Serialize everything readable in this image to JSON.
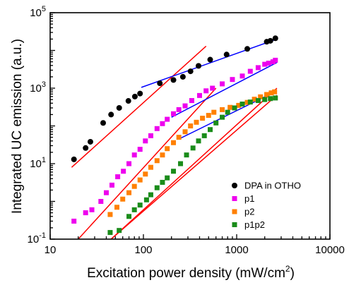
{
  "chart_data": {
    "type": "scatter",
    "xlabel": "Excitation power density (mW/cm",
    "xlabel_sup": "2",
    "xlabel_end": ")",
    "ylabel": "Integrated UC emission (a.u.)",
    "xscale": "log",
    "yscale": "log",
    "xlim": [
      10,
      10000
    ],
    "ylim": [
      0.1,
      100000
    ],
    "x_ticks": [
      10,
      100,
      1000,
      10000
    ],
    "x_tick_labels": [
      "10",
      "100",
      "1000",
      "10000"
    ],
    "y_ticks": [
      0.1,
      10,
      1000,
      100000
    ],
    "y_tick_labels": [
      {
        "base": "10",
        "exp": "-1"
      },
      {
        "base": "10",
        "exp": "1"
      },
      {
        "base": "10",
        "exp": "3"
      },
      {
        "base": "10",
        "exp": "5"
      }
    ],
    "grid": false,
    "legend_position": "bottom-right",
    "series": [
      {
        "name": "DPA in OTHO",
        "color": "#000000",
        "marker": "circle",
        "x": [
          18,
          24,
          27,
          37,
          45,
          55,
          69,
          81,
          92,
          150,
          210,
          265,
          320,
          390,
          520,
          780,
          1300,
          2100,
          2300,
          2600
        ],
        "y": [
          13,
          26,
          38,
          120,
          200,
          300,
          460,
          600,
          720,
          1350,
          1650,
          2000,
          2800,
          3900,
          5700,
          7800,
          11000,
          17000,
          18000,
          21000
        ]
      },
      {
        "name": "p1",
        "color": "#ee00ee",
        "marker": "square",
        "x": [
          18,
          24,
          28,
          35,
          40,
          46,
          53,
          61,
          70,
          80,
          92,
          105,
          120,
          140,
          160,
          180,
          210,
          240,
          280,
          330,
          400,
          470,
          550,
          700,
          900,
          1150,
          1400,
          1700,
          2000,
          2200,
          2450,
          2600
        ],
        "y": [
          0.3,
          0.5,
          0.6,
          1.0,
          1.7,
          2.7,
          4.5,
          6.3,
          10,
          17,
          24,
          40,
          55,
          85,
          115,
          150,
          210,
          270,
          340,
          470,
          640,
          850,
          1000,
          1300,
          1700,
          2100,
          2800,
          3500,
          4300,
          4600,
          5000,
          5500
        ]
      },
      {
        "name": "p2",
        "color": "#ff8000",
        "marker": "square",
        "x": [
          44,
          52,
          60,
          70,
          80,
          92,
          105,
          120,
          140,
          160,
          180,
          210,
          240,
          280,
          320,
          370,
          430,
          500,
          570,
          700,
          850,
          1050,
          1300,
          1550,
          1800,
          2100,
          2350,
          2550
        ],
        "y": [
          0.45,
          0.7,
          1.15,
          1.7,
          2.5,
          3.7,
          5.3,
          8,
          12,
          17,
          25,
          36,
          50,
          70,
          100,
          125,
          160,
          190,
          230,
          270,
          310,
          350,
          420,
          510,
          590,
          680,
          750,
          800
        ]
      },
      {
        "name": "p1p2",
        "color": "#1a8c1a",
        "marker": "square",
        "x": [
          44,
          55,
          70,
          80,
          92,
          108,
          120,
          140,
          160,
          180,
          210,
          250,
          290,
          340,
          390,
          450,
          520,
          600,
          700,
          800,
          950,
          1150,
          1400,
          1700,
          2000,
          2300,
          2600
        ],
        "y": [
          0.15,
          0.17,
          0.4,
          0.6,
          0.8,
          1.1,
          1.5,
          2.3,
          3.2,
          4.2,
          6.3,
          10,
          17,
          26,
          40,
          55,
          80,
          120,
          170,
          230,
          300,
          380,
          430,
          470,
          500,
          530,
          550
        ]
      }
    ],
    "fit_lines": [
      {
        "color": "#ff0000",
        "x": [
          17,
          470
        ],
        "y": [
          8,
          13000
        ]
      },
      {
        "color": "#0000ff",
        "x": [
          95,
          2700
        ],
        "y": [
          1050,
          20000
        ]
      },
      {
        "color": "#ff0000",
        "x": [
          20,
          600
        ],
        "y": [
          0.1,
          1000
        ]
      },
      {
        "color": "#0000ff",
        "x": [
          200,
          2700
        ],
        "y": [
          170,
          4800
        ]
      },
      {
        "color": "#ff0000",
        "x": [
          45,
          2700
        ],
        "y": [
          0.1,
          1000
        ]
      },
      {
        "color": "#0000ff",
        "x": [
          240,
          2700
        ],
        "y": [
          45,
          850
        ]
      },
      {
        "color": "#ff0000",
        "x": [
          45,
          2700
        ],
        "y": [
          0.1,
          650
        ]
      }
    ]
  }
}
